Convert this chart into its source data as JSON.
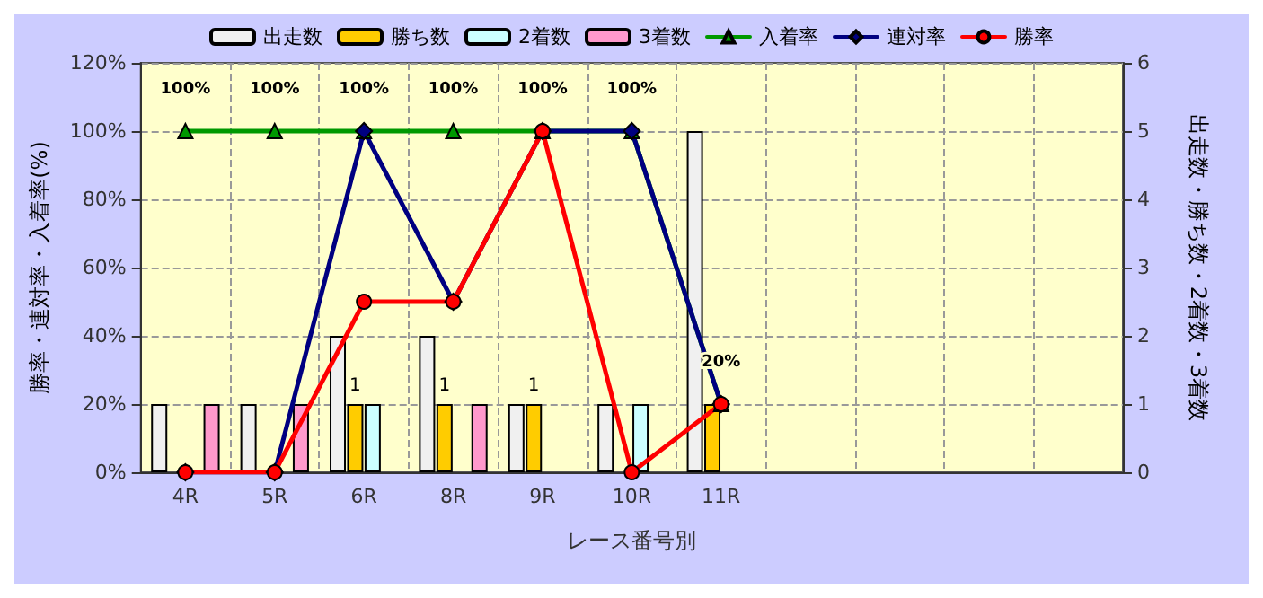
{
  "chart_data": {
    "type": "bar",
    "xlabel": "レース番号別",
    "ylabel": "勝率・連対率・入着率(%)",
    "y2label": "出走数・勝ち数・2着数・3着数",
    "categories": [
      "4R",
      "5R",
      "6R",
      "8R",
      "9R",
      "10R",
      "11R",
      null,
      null,
      null,
      null
    ],
    "series": [
      {
        "name": "出走数",
        "axis": "y2",
        "color": "#f0f0f0",
        "values": [
          1,
          1,
          2,
          2,
          1,
          1,
          5,
          null,
          null,
          null,
          null
        ]
      },
      {
        "name": "勝ち数",
        "axis": "y2",
        "color": "#ffcc00",
        "values": [
          0,
          0,
          1,
          1,
          1,
          0,
          1,
          null,
          null,
          null,
          null
        ],
        "value_labels": [
          null,
          null,
          "1",
          "1",
          "1",
          null,
          null,
          null,
          null,
          null,
          null
        ]
      },
      {
        "name": "2着数",
        "axis": "y2",
        "color": "#ccffff",
        "values": [
          0,
          0,
          1,
          0,
          0,
          1,
          0,
          null,
          null,
          null,
          null
        ]
      },
      {
        "name": "3着数",
        "axis": "y2",
        "color": "#ff99cc",
        "values": [
          1,
          1,
          0,
          1,
          0,
          0,
          0,
          null,
          null,
          null,
          null
        ]
      },
      {
        "name": "入着率",
        "type": "line",
        "color": "#009900",
        "marker": "triangle",
        "values": [
          100,
          100,
          100,
          100,
          100,
          100,
          20,
          null,
          null,
          null,
          null
        ],
        "value_labels": [
          "100%",
          "100%",
          "100%",
          "100%",
          "100%",
          "100%",
          "20%",
          null,
          null,
          null,
          null
        ]
      },
      {
        "name": "連対率",
        "type": "line",
        "color": "#000080",
        "marker": "diamond",
        "values": [
          0,
          0,
          100,
          50,
          100,
          100,
          20,
          null,
          null,
          null,
          null
        ]
      },
      {
        "name": "勝率",
        "type": "line",
        "color": "#ff0000",
        "marker": "circle",
        "values": [
          0,
          0,
          50,
          50,
          100,
          0,
          20,
          null,
          null,
          null,
          null
        ]
      }
    ],
    "ylim": [
      0,
      120
    ],
    "yticks": [
      {
        "value": 0,
        "label": "0%"
      },
      {
        "value": 20,
        "label": "20%"
      },
      {
        "value": 40,
        "label": "40%"
      },
      {
        "value": 60,
        "label": "60%"
      },
      {
        "value": 80,
        "label": "80%"
      },
      {
        "value": 100,
        "label": "100%"
      },
      {
        "value": 120,
        "label": "120%"
      }
    ],
    "y2lim": [
      0,
      6
    ],
    "y2ticks": [
      0,
      1,
      2,
      3,
      4,
      5,
      6
    ],
    "grid": true,
    "legend": "top"
  }
}
